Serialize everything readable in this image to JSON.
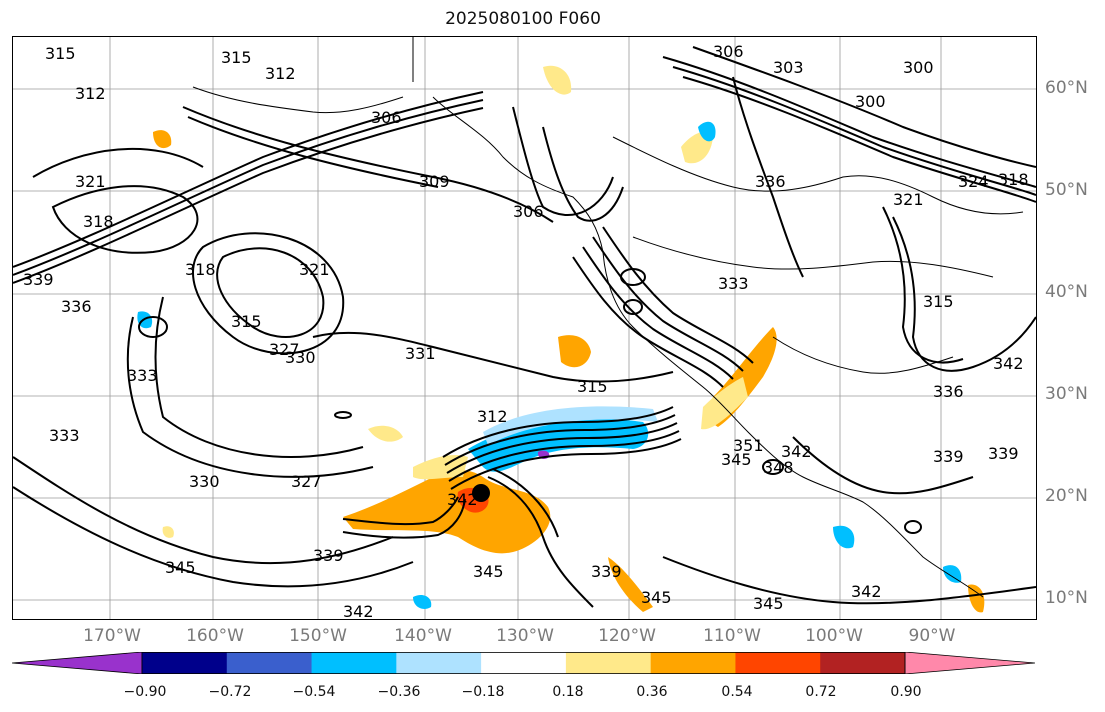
{
  "title": "2025080100 F060",
  "lat_labels": [
    "60°N",
    "50°N",
    "40°N",
    "30°N",
    "20°N",
    "10°N"
  ],
  "lon_labels": [
    "170°W",
    "160°W",
    "150°W",
    "140°W",
    "130°W",
    "120°W",
    "110°W",
    "100°W",
    "90°W"
  ],
  "colorbar": {
    "ticks": [
      "−0.90",
      "−0.72",
      "−0.54",
      "−0.36",
      "−0.18",
      "0.18",
      "0.36",
      "0.54",
      "0.72",
      "0.90"
    ],
    "colors": [
      "#9932cc",
      "#00008b",
      "#3a5fcd",
      "#00bfff",
      "#aee2ff",
      "#ffffff",
      "#ffe98a",
      "#ffa500",
      "#ff4500",
      "#b22222",
      "#ff88aa"
    ]
  },
  "contour_labels": [
    "315",
    "312",
    "315",
    "312",
    "306",
    "309",
    "306",
    "303",
    "300",
    "300",
    "306",
    "336",
    "321",
    "324",
    "318",
    "321",
    "318",
    "339",
    "336",
    "318",
    "315",
    "321",
    "327",
    "330",
    "331",
    "333",
    "333",
    "330",
    "327",
    "312",
    "315",
    "342",
    "339",
    "345",
    "345",
    "339",
    "345",
    "342",
    "345",
    "342",
    "336",
    "333",
    "315",
    "342",
    "339",
    "339",
    "351",
    "345",
    "342",
    "348"
  ],
  "storm_marker": "tropical-cyclone-center"
}
